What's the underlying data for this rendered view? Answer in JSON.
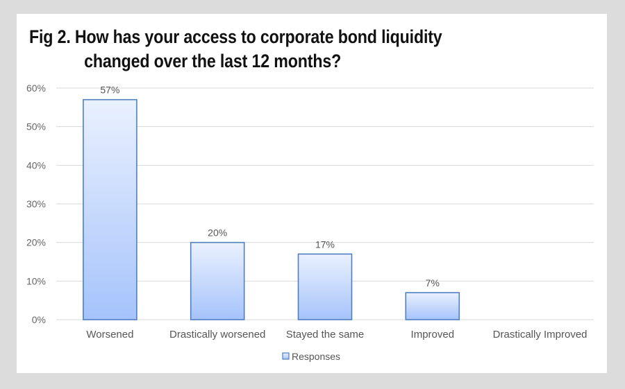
{
  "chart_data": {
    "type": "bar",
    "title_lines": [
      "Fig 2. How has your access to corporate bond liquidity",
      "changed over the last 12 months?"
    ],
    "categories": [
      "Worsened",
      "Drastically worsened",
      "Stayed the same",
      "Improved",
      "Drastically Improved"
    ],
    "series": [
      {
        "name": "Responses",
        "values": [
          57,
          20,
          17,
          7,
          0
        ],
        "labels": [
          "57%",
          "20%",
          "17%",
          "7%",
          ""
        ]
      }
    ],
    "yticks": [
      "0%",
      "10%",
      "20%",
      "30%",
      "40%",
      "50%",
      "60%"
    ],
    "ylim": [
      0,
      60
    ],
    "grid": true,
    "legend_position": "bottom",
    "colors": {
      "bar_top": "#eaf1fe",
      "bar_bottom": "#a5c3fb",
      "bar_stroke": "#4f7fc0",
      "grid": "#d9d9d9"
    }
  }
}
